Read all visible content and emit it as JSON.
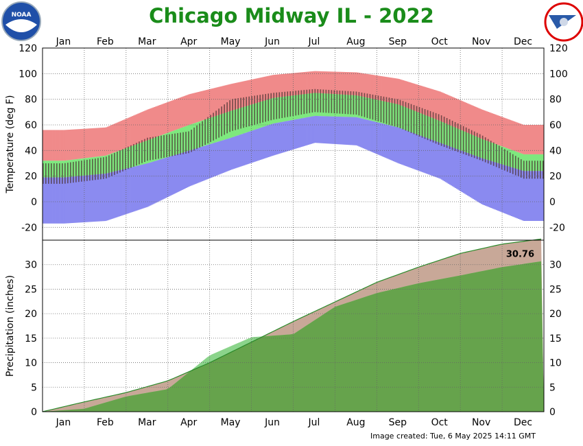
{
  "title": "Chicago Midway IL - 2022",
  "footer": "Image created: Tue, 6 May 2025 14:11 GMT",
  "logos": {
    "left": "noaa-logo",
    "right": "nws-logo",
    "left_text": "NOAA",
    "right_text": "NATIONAL WEATHER SERVICE"
  },
  "colors": {
    "record_band": "#f08a8a",
    "normal_band": "#7ee87e",
    "record_low_band": "#8a8af0",
    "observed_bar": "#4a3030",
    "precip_normal": "#c8a898",
    "precip_observed": "#66a34c",
    "precip_line": "#2a8a2a",
    "title": "#1a8c1a"
  },
  "chart_data": [
    {
      "type": "bar",
      "panel": "temperature",
      "ylabel": "Temperature (deg F)",
      "ylim": [
        -30,
        120
      ],
      "yticks": [
        -20,
        0,
        20,
        40,
        60,
        80,
        100,
        120
      ],
      "xlabels": [
        "Jan",
        "Feb",
        "Mar",
        "Apr",
        "May",
        "Jun",
        "Jul",
        "Aug",
        "Sep",
        "Oct",
        "Nov",
        "Dec"
      ],
      "grid": true,
      "months": [
        1,
        2,
        3,
        4,
        5,
        6,
        7,
        8,
        9,
        10,
        11,
        12
      ],
      "record_high": [
        56,
        58,
        72,
        84,
        92,
        99,
        102,
        101,
        96,
        86,
        72,
        60
      ],
      "record_low": [
        -17,
        -15,
        -4,
        12,
        25,
        36,
        46,
        44,
        30,
        18,
        -2,
        -15
      ],
      "normal_high": [
        32,
        36,
        48,
        60,
        71,
        81,
        85,
        83,
        76,
        63,
        49,
        37
      ],
      "normal_low": [
        19,
        22,
        30,
        40,
        50,
        61,
        67,
        66,
        58,
        46,
        34,
        24
      ],
      "observed_high": [
        30,
        35,
        50,
        55,
        80,
        85,
        88,
        86,
        80,
        68,
        52,
        32
      ],
      "observed_low": [
        14,
        18,
        32,
        38,
        55,
        64,
        70,
        68,
        58,
        44,
        32,
        18
      ]
    },
    {
      "type": "area",
      "panel": "precipitation",
      "ylabel": "Precipitation (inches)",
      "ylim": [
        0,
        35
      ],
      "yticks": [
        0,
        5,
        10,
        15,
        20,
        25,
        30
      ],
      "xlabels": [
        "Jan",
        "Feb",
        "Mar",
        "Apr",
        "May",
        "Jun",
        "Jul",
        "Aug",
        "Sep",
        "Oct",
        "Nov",
        "Dec"
      ],
      "grid": true,
      "month_end": [
        1,
        2,
        3,
        4,
        5,
        6,
        7,
        8,
        9,
        10,
        11,
        12
      ],
      "normal_cumulative": [
        2.0,
        3.9,
        6.3,
        10.0,
        14.2,
        18.4,
        22.4,
        26.4,
        29.5,
        32.3,
        34.2,
        35.3
      ],
      "observed_cumulative": [
        0.6,
        3.1,
        4.6,
        11.5,
        15.2,
        15.8,
        21.4,
        24.2,
        26.2,
        27.8,
        29.5,
        30.76
      ],
      "annotation": "30.76"
    }
  ]
}
